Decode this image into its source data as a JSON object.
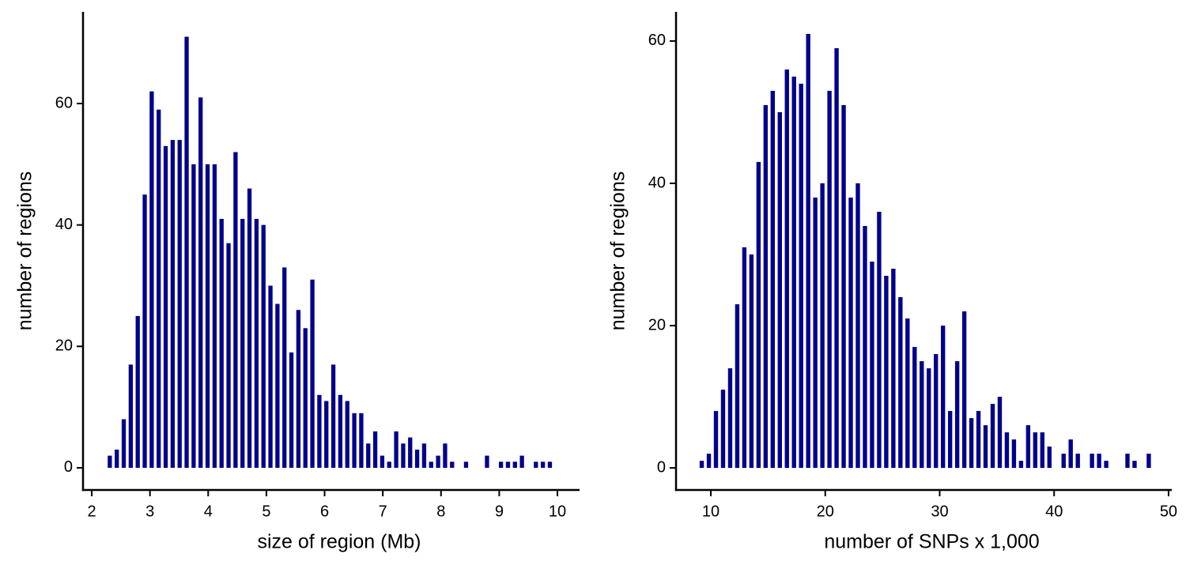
{
  "chart_data": [
    {
      "type": "histogram",
      "xlabel": "size of region (Mb)",
      "ylabel": "number of regions",
      "color": "#00008b",
      "bins": [
        2.25,
        2.37,
        2.49,
        2.61,
        2.73,
        2.85,
        2.97,
        3.09,
        3.21,
        3.33,
        3.45,
        3.57,
        3.69,
        3.81,
        3.93,
        4.05,
        4.17,
        4.29,
        4.41,
        4.53,
        4.65,
        4.77,
        4.89,
        5.01,
        5.13,
        5.25,
        5.37,
        5.49,
        5.61,
        5.73,
        5.85,
        5.97,
        6.09,
        6.21,
        6.33,
        6.45,
        6.57,
        6.69,
        6.81,
        6.93,
        7.05,
        7.17,
        7.29,
        7.41,
        7.53,
        7.65,
        7.77,
        7.89,
        8.01,
        8.13,
        8.25,
        8.37,
        8.49,
        8.61,
        8.73,
        8.85,
        8.97,
        9.09,
        9.21,
        9.33,
        9.45,
        9.57,
        9.69,
        9.81,
        9.93
      ],
      "counts": [
        2,
        3,
        8,
        17,
        25,
        45,
        62,
        59,
        53,
        54,
        54,
        71,
        50,
        61,
        50,
        50,
        41,
        37,
        52,
        41,
        46,
        41,
        40,
        30,
        27,
        33,
        19,
        26,
        23,
        31,
        12,
        11,
        17,
        12,
        11,
        9,
        9,
        4,
        6,
        2,
        1,
        6,
        4,
        5,
        3,
        4,
        1,
        2,
        4,
        1,
        0,
        1,
        0,
        0,
        2,
        0,
        1,
        1,
        1,
        2,
        0,
        1,
        1,
        1
      ],
      "xlim": [
        1.85,
        10.38
      ],
      "ylim": [
        -3.65,
        75.1
      ],
      "xticks": [
        2,
        3,
        4,
        5,
        6,
        7,
        8,
        9,
        10
      ],
      "yticks": [
        0,
        20,
        40,
        60
      ]
    },
    {
      "type": "histogram",
      "xlabel": "number of SNPs x 1,000",
      "ylabel": "number of regions",
      "color": "#00008b",
      "bins": [
        8.9,
        9.52,
        10.14,
        10.76,
        11.38,
        12.0,
        12.62,
        13.24,
        13.86,
        14.48,
        15.1,
        15.72,
        16.34,
        16.96,
        17.58,
        18.2,
        18.82,
        19.44,
        20.06,
        20.68,
        21.3,
        21.92,
        22.54,
        23.16,
        23.78,
        24.4,
        25.02,
        25.64,
        26.26,
        26.88,
        27.5,
        28.12,
        28.74,
        29.36,
        29.98,
        30.6,
        31.22,
        31.84,
        32.46,
        33.08,
        33.7,
        34.32,
        34.94,
        35.56,
        36.18,
        36.8,
        37.42,
        38.04,
        38.66,
        39.28,
        39.9,
        40.52,
        41.14,
        41.76,
        42.38,
        43.0,
        43.62,
        44.24,
        44.86,
        45.48,
        46.1,
        46.72,
        47.34,
        47.96,
        48.58
      ],
      "counts": [
        1,
        2,
        8,
        11,
        14,
        23,
        31,
        30,
        43,
        51,
        53,
        50,
        56,
        55,
        54,
        61,
        38,
        40,
        53,
        59,
        51,
        38,
        40,
        34,
        29,
        36,
        27,
        28,
        24,
        21,
        17,
        15,
        14,
        16,
        20,
        8,
        15,
        22,
        7,
        8,
        6,
        9,
        10,
        5,
        4,
        1,
        6,
        5,
        5,
        3,
        0,
        2,
        4,
        2,
        0,
        2,
        2,
        1,
        0,
        0,
        2,
        1,
        0,
        2
      ],
      "xlim": [
        6.96,
        50.28
      ],
      "ylim": [
        -3.1,
        64.1
      ],
      "xticks": [
        10,
        20,
        30,
        40,
        50
      ],
      "yticks": [
        0,
        20,
        40,
        60
      ]
    }
  ]
}
